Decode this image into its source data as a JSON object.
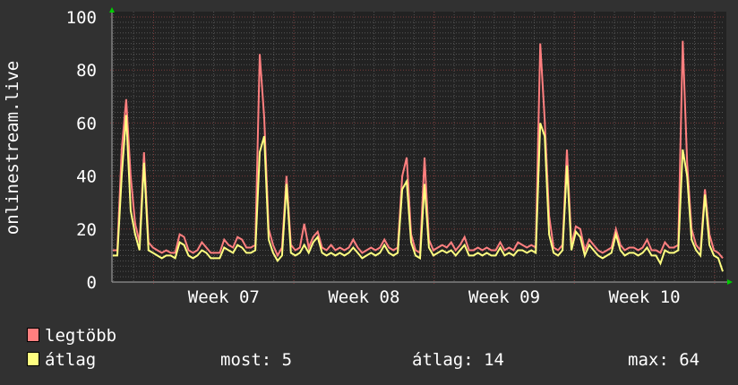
{
  "chart_data": {
    "type": "line",
    "ylabel": "onlinestream.live",
    "ylim": [
      0,
      100
    ],
    "yticks": [
      0,
      20,
      40,
      60,
      80,
      100
    ],
    "xtick_labels": [
      "Week 07",
      "Week 08",
      "Week 09",
      "Week 10"
    ],
    "grid": true,
    "colors": {
      "background": "#313131",
      "plot": "#222222",
      "major_grid": "#7a3a3a",
      "minor_grid": "#555555",
      "axis_arrow": "#00cc00"
    },
    "series": [
      {
        "name": "legtöbb",
        "color": "#ff7f7f",
        "values": [
          12,
          12,
          50,
          69,
          40,
          22,
          15,
          49,
          15,
          13,
          12,
          11,
          12,
          11,
          11,
          18,
          17,
          12,
          11,
          12,
          15,
          13,
          11,
          11,
          11,
          16,
          14,
          13,
          17,
          16,
          13,
          13,
          14,
          86,
          62,
          20,
          14,
          10,
          13,
          40,
          14,
          12,
          13,
          22,
          13,
          17,
          19,
          13,
          12,
          14,
          12,
          13,
          12,
          13,
          16,
          13,
          11,
          12,
          13,
          12,
          13,
          16,
          13,
          12,
          13,
          40,
          47,
          18,
          12,
          11,
          47,
          16,
          12,
          13,
          14,
          13,
          15,
          12,
          14,
          17,
          12,
          12,
          13,
          12,
          13,
          12,
          12,
          15,
          12,
          13,
          12,
          15,
          14,
          13,
          14,
          13,
          90,
          61,
          25,
          13,
          12,
          14,
          50,
          14,
          21,
          20,
          12,
          16,
          14,
          12,
          11,
          12,
          13,
          20,
          14,
          12,
          13,
          13,
          12,
          13,
          16,
          12,
          12,
          11,
          15,
          13,
          13,
          14,
          91,
          45,
          20,
          14,
          12,
          35,
          18,
          12,
          11,
          9
        ]
      },
      {
        "name": "átlag",
        "color": "#ffff80",
        "values": [
          10,
          10,
          40,
          63,
          27,
          18,
          12,
          45,
          12,
          11,
          10,
          9,
          10,
          10,
          9,
          15,
          14,
          10,
          9,
          10,
          12,
          11,
          9,
          9,
          9,
          13,
          12,
          11,
          14,
          13,
          11,
          11,
          12,
          49,
          55,
          16,
          11,
          8,
          10,
          37,
          11,
          10,
          11,
          14,
          11,
          15,
          17,
          11,
          10,
          11,
          10,
          11,
          10,
          11,
          13,
          11,
          9,
          10,
          11,
          10,
          11,
          14,
          11,
          10,
          11,
          35,
          38,
          15,
          10,
          9,
          37,
          13,
          10,
          11,
          12,
          11,
          12,
          10,
          12,
          14,
          10,
          10,
          11,
          10,
          11,
          10,
          10,
          13,
          10,
          11,
          10,
          12,
          12,
          11,
          12,
          11,
          60,
          55,
          18,
          11,
          10,
          12,
          44,
          12,
          19,
          17,
          10,
          14,
          12,
          10,
          9,
          10,
          11,
          18,
          12,
          10,
          11,
          11,
          10,
          11,
          13,
          10,
          10,
          7,
          12,
          11,
          11,
          12,
          50,
          40,
          16,
          12,
          10,
          33,
          14,
          10,
          9,
          4
        ]
      }
    ]
  },
  "legend": {
    "items": [
      {
        "label": "legtöbb",
        "color": "#ff7f7f"
      },
      {
        "label": "átlag",
        "color": "#ffff80"
      }
    ]
  },
  "stats": {
    "now": "most: 5",
    "avg": "átlag: 14",
    "max": "max: 64"
  }
}
